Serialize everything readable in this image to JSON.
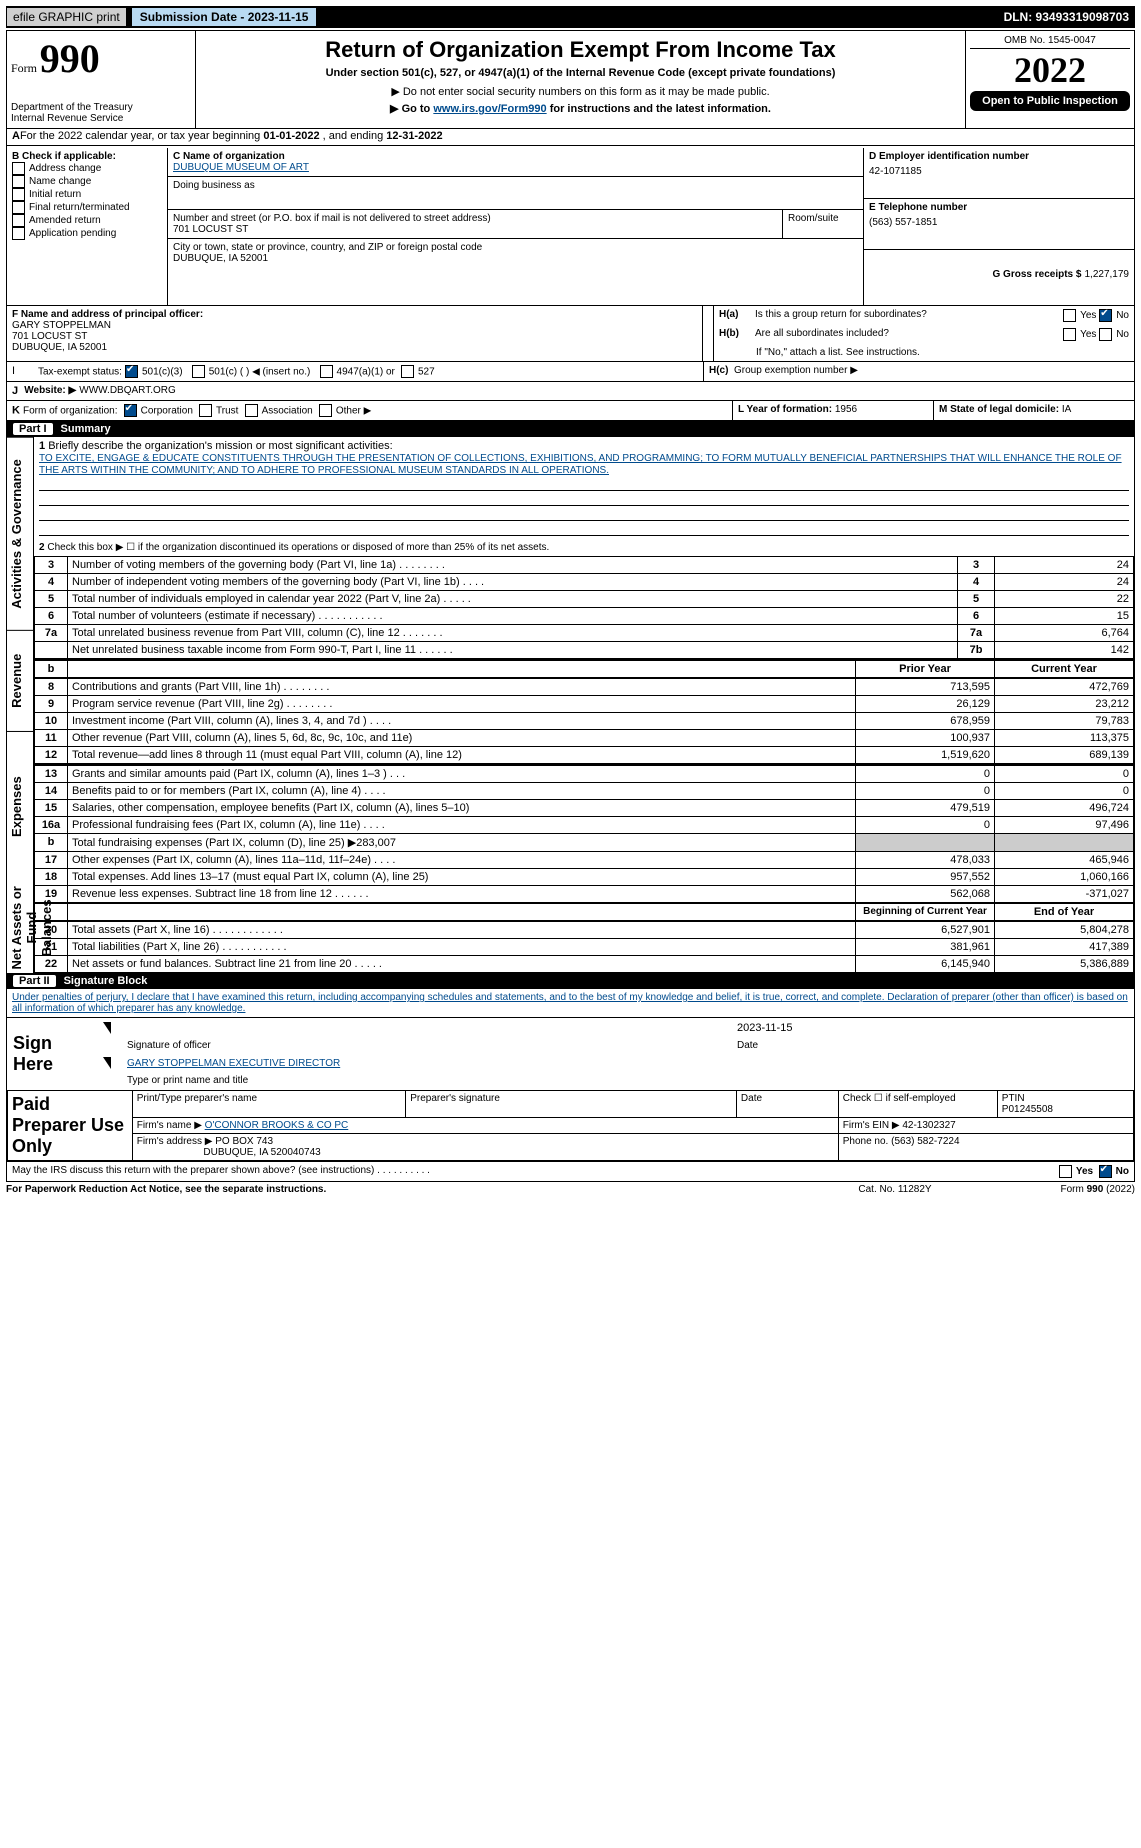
{
  "top": {
    "efile": "efile GRAPHIC print",
    "submission": "Submission Date - 2023-11-15",
    "dln": "DLN: 93493319098703"
  },
  "header": {
    "form_label": "Form",
    "form_number": "990",
    "dept1": "Department of the Treasury",
    "dept2": "Internal Revenue Service",
    "title": "Return of Organization Exempt From Income Tax",
    "sub1": "Under section 501(c), 527, or 4947(a)(1) of the Internal Revenue Code (except private foundations)",
    "sub2": "Do not enter social security numbers on this form as it may be made public.",
    "sub3_pre": "Go to ",
    "sub3_link": "www.irs.gov/Form990",
    "sub3_post": " for instructions and the latest information.",
    "omb": "OMB No. 1545-0047",
    "year": "2022",
    "open": "Open to Public Inspection"
  },
  "A": {
    "text_pre": "For the 2022 calendar year, or tax year beginning ",
    "begin": "01-01-2022",
    "mid": " , and ending ",
    "end": "12-31-2022"
  },
  "B": {
    "label": "B Check if applicable:",
    "opts": [
      "Address change",
      "Name change",
      "Initial return",
      "Final return/terminated",
      "Amended return",
      "Application pending"
    ]
  },
  "C": {
    "label": "C Name of organization",
    "name": "DUBUQUE MUSEUM OF ART",
    "dba_label": "Doing business as",
    "street_label": "Number and street (or P.O. box if mail is not delivered to street address)",
    "room_label": "Room/suite",
    "street": "701 LOCUST ST",
    "city_label": "City or town, state or province, country, and ZIP or foreign postal code",
    "city": "DUBUQUE, IA  52001"
  },
  "D": {
    "label": "D Employer identification number",
    "value": "42-1071185"
  },
  "E": {
    "label": "E Telephone number",
    "value": "(563) 557-1851"
  },
  "G": {
    "label": "G Gross receipts $",
    "value": "1,227,179"
  },
  "F": {
    "label": "F  Name and address of principal officer:",
    "name": "GARY STOPPELMAN",
    "addr1": "701 LOCUST ST",
    "addr2": "DUBUQUE, IA  52001"
  },
  "H": {
    "a": "Is this a group return for subordinates?",
    "b": "Are all subordinates included?",
    "bnote": "If \"No,\" attach a list. See instructions.",
    "c": "Group exemption number ▶",
    "yes": "Yes",
    "no": "No"
  },
  "I": {
    "label": "Tax-exempt status:",
    "o1": "501(c)(3)",
    "o2": "501(c) (   ) ◀ (insert no.)",
    "o3": "4947(a)(1) or",
    "o4": "527"
  },
  "J": {
    "label": "Website: ▶",
    "value": "WWW.DBQART.ORG"
  },
  "K": {
    "label": "Form of organization:",
    "opts": [
      "Corporation",
      "Trust",
      "Association",
      "Other ▶"
    ]
  },
  "L": {
    "label": "L Year of formation:",
    "value": "1956"
  },
  "M": {
    "label": "M State of legal domicile:",
    "value": "IA"
  },
  "part1": {
    "title": "Part I",
    "name": "Summary",
    "q1": "Briefly describe the organization's mission or most significant activities:",
    "mission": "TO EXCITE, ENGAGE & EDUCATE CONSTITUENTS THROUGH THE PRESENTATION OF COLLECTIONS, EXHIBITIONS, AND PROGRAMMING; TO FORM MUTUALLY BENEFICIAL PARTNERSHIPS THAT WILL ENHANCE THE ROLE OF THE ARTS WITHIN THE COMMUNITY; AND TO ADHERE TO PROFESSIONAL MUSEUM STANDARDS IN ALL OPERATIONS.",
    "q2": "Check this box ▶ ☐  if the organization discontinued its operations or disposed of more than 25% of its net assets.",
    "tab_gov": "Activities & Governance",
    "tab_rev": "Revenue",
    "tab_exp": "Expenses",
    "tab_net": "Net Assets or Fund Balances",
    "lines_gov": [
      {
        "n": "3",
        "t": "Number of voting members of the governing body (Part VI, line 1a)   .   .   .   .   .   .   .   .",
        "lab": "3",
        "v": "24"
      },
      {
        "n": "4",
        "t": "Number of independent voting members of the governing body (Part VI, line 1b)   .   .   .   .",
        "lab": "4",
        "v": "24"
      },
      {
        "n": "5",
        "t": "Total number of individuals employed in calendar year 2022 (Part V, line 2a)   .   .   .   .   .",
        "lab": "5",
        "v": "22"
      },
      {
        "n": "6",
        "t": "Total number of volunteers (estimate if necessary)   .   .   .   .   .   .   .   .   .   .   .",
        "lab": "6",
        "v": "15"
      },
      {
        "n": "7a",
        "t": "Total unrelated business revenue from Part VIII, column (C), line 12  .   .   .   .   .   .   .",
        "lab": "7a",
        "v": "6,764"
      },
      {
        "n": "",
        "t": "Net unrelated business taxable income from Form 990-T, Part I, line 11   .   .   .   .   .   .",
        "lab": "7b",
        "v": "142"
      }
    ],
    "col_prior": "Prior Year",
    "col_curr": "Current Year",
    "lines_rev": [
      {
        "n": "8",
        "t": "Contributions and grants (Part VIII, line 1h)   .   .   .   .   .   .   .   .",
        "p": "713,595",
        "c": "472,769"
      },
      {
        "n": "9",
        "t": "Program service revenue (Part VIII, line 2g)   .   .   .   .   .   .   .   .",
        "p": "26,129",
        "c": "23,212"
      },
      {
        "n": "10",
        "t": "Investment income (Part VIII, column (A), lines 3, 4, and 7d )   .   .   .   .",
        "p": "678,959",
        "c": "79,783"
      },
      {
        "n": "11",
        "t": "Other revenue (Part VIII, column (A), lines 5, 6d, 8c, 9c, 10c, and 11e)",
        "p": "100,937",
        "c": "113,375"
      },
      {
        "n": "12",
        "t": "Total revenue—add lines 8 through 11 (must equal Part VIII, column (A), line 12)",
        "p": "1,519,620",
        "c": "689,139"
      }
    ],
    "lines_exp": [
      {
        "n": "13",
        "t": "Grants and similar amounts paid (Part IX, column (A), lines 1–3 )   .   .   .",
        "p": "0",
        "c": "0"
      },
      {
        "n": "14",
        "t": "Benefits paid to or for members (Part IX, column (A), line 4)   .   .   .   .",
        "p": "0",
        "c": "0"
      },
      {
        "n": "15",
        "t": "Salaries, other compensation, employee benefits (Part IX, column (A), lines 5–10)",
        "p": "479,519",
        "c": "496,724"
      },
      {
        "n": "16a",
        "t": "Professional fundraising fees (Part IX, column (A), line 11e)   .   .   .   .",
        "p": "0",
        "c": "97,496"
      },
      {
        "n": "b",
        "t": "Total fundraising expenses (Part IX, column (D), line 25) ▶283,007",
        "p": "",
        "c": ""
      },
      {
        "n": "17",
        "t": "Other expenses (Part IX, column (A), lines 11a–11d, 11f–24e)   .   .   .   .",
        "p": "478,033",
        "c": "465,946"
      },
      {
        "n": "18",
        "t": "Total expenses. Add lines 13–17 (must equal Part IX, column (A), line 25)",
        "p": "957,552",
        "c": "1,060,166"
      },
      {
        "n": "19",
        "t": "Revenue less expenses. Subtract line 18 from line 12   .   .   .   .   .   .",
        "p": "562,068",
        "c": "-371,027"
      }
    ],
    "col_begin": "Beginning of Current Year",
    "col_end": "End of Year",
    "lines_net": [
      {
        "n": "20",
        "t": "Total assets (Part X, line 16)   .   .   .   .   .   .   .   .   .   .   .   .",
        "p": "6,527,901",
        "c": "5,804,278"
      },
      {
        "n": "21",
        "t": "Total liabilities (Part X, line 26)   .   .   .   .   .   .   .   .   .   .   .",
        "p": "381,961",
        "c": "417,389"
      },
      {
        "n": "22",
        "t": "Net assets or fund balances. Subtract line 21 from line 20   .   .   .   .   .",
        "p": "6,145,940",
        "c": "5,386,889"
      }
    ]
  },
  "part2": {
    "title": "Part II",
    "name": "Signature Block",
    "penalty": "Under penalties of perjury, I declare that I have examined this return, including accompanying schedules and statements, and to the best of my knowledge and belief, it is true, correct, and complete. Declaration of preparer (other than officer) is based on all information of which preparer has any knowledge.",
    "sign_here": "Sign Here",
    "sig_officer": "Signature of officer",
    "date": "Date",
    "sig_date": "2023-11-15",
    "typed": "GARY STOPPELMAN  EXECUTIVE DIRECTOR",
    "typed_label": "Type or print name and title",
    "paid": "Paid Preparer Use Only",
    "h_name": "Print/Type preparer's name",
    "h_sig": "Preparer's signature",
    "h_date": "Date",
    "h_chk": "Check ☐ if self-employed",
    "h_ptin": "PTIN",
    "ptin": "P01245508",
    "firm_name_l": "Firm's name    ▶",
    "firm_name": "O'CONNOR BROOKS & CO PC",
    "firm_ein_l": "Firm's EIN ▶",
    "firm_ein": "42-1302327",
    "firm_addr_l": "Firm's address ▶",
    "firm_addr1": "PO BOX 743",
    "firm_addr2": "DUBUQUE, IA  520040743",
    "phone_l": "Phone no.",
    "phone": "(563) 582-7224",
    "may": "May the IRS discuss this return with the preparer shown above? (see instructions)   .   .   .   .   .   .   .   .   .   .",
    "yes": "Yes",
    "no": "No"
  },
  "footer": {
    "pra": "For Paperwork Reduction Act Notice, see the separate instructions.",
    "cat": "Cat. No. 11282Y",
    "form": "Form 990 (2022)"
  }
}
